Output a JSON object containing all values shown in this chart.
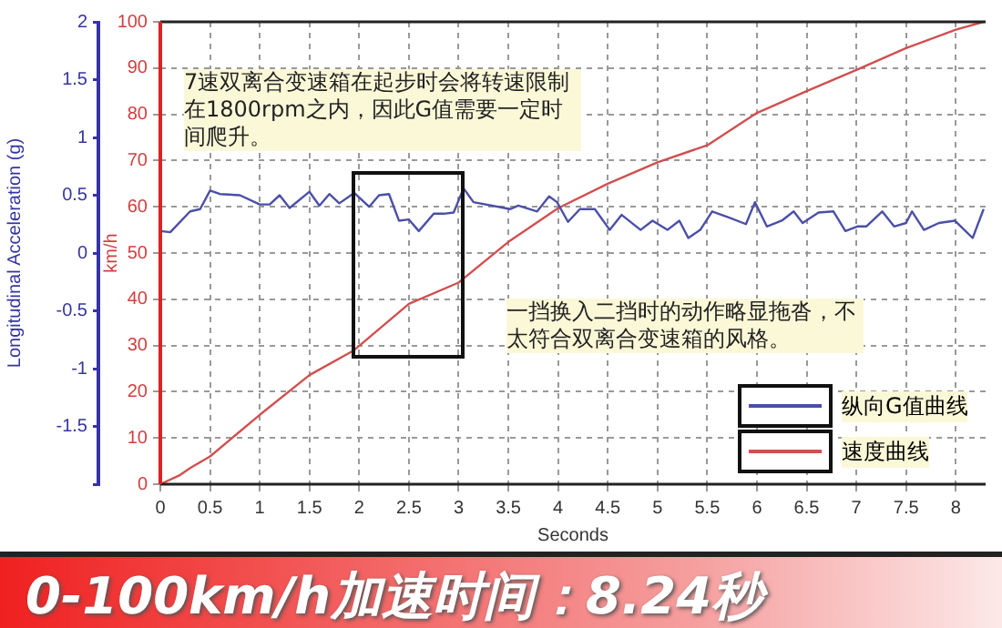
{
  "chart_data": {
    "type": "line",
    "title": "0-100km/h加速时间：8.24秒",
    "xlabel": "Seconds",
    "ylabel": "Longitudinal Acceleration (g)",
    "y2label": "km/h",
    "xlim": [
      0,
      8.3
    ],
    "xticks": [
      0,
      0.5,
      1,
      1.5,
      2,
      2.5,
      3,
      3.5,
      4,
      4.5,
      5,
      5.5,
      6,
      6.5,
      7,
      7.5,
      8
    ],
    "ylim": [
      -2,
      2
    ],
    "yticks": [
      {
        "value": -2,
        "label": null
      },
      -1.5,
      -1,
      -0.5,
      0,
      0.5,
      1,
      1.5,
      2
    ],
    "y2lim": [
      0,
      100
    ],
    "y2ticks": [
      0,
      10,
      20,
      30,
      40,
      50,
      60,
      70,
      80,
      90,
      100
    ],
    "grid": true,
    "legend": "bottom right",
    "marker": "none",
    "line_style": "solid",
    "annotations": [
      "7速双离合变速箱在起步时会将转速限制在1800rpm之内，因此G值需要一定时间爬升。",
      "一挡换入二挡时的动作略显拖沓，不太符合双离合变速箱的风格。"
    ],
    "series": [
      {
        "name": "纵向G值曲线",
        "color": "#4b4fa8",
        "axis": "y",
        "x": [
          0,
          0.1,
          0.3,
          0.4,
          0.5,
          0.6,
          0.8,
          1,
          1.1,
          1.2,
          1.3,
          1.5,
          1.6,
          1.7,
          1.8,
          1.95,
          2.1,
          2.2,
          2.3,
          2.4,
          2.5,
          2.6,
          2.75,
          2.85,
          2.95,
          3.05,
          3.15,
          3.52,
          3.6,
          3.79,
          3.91,
          3.99,
          4.1,
          4.22,
          4.37,
          4.52,
          4.64,
          4.83,
          4.95,
          5.1,
          5.22,
          5.31,
          5.43,
          5.55,
          5.71,
          5.89,
          5.98,
          6.1,
          6.25,
          6.37,
          6.46,
          6.62,
          6.77,
          6.89,
          7.01,
          7.1,
          7.26,
          7.38,
          7.5,
          7.56,
          7.68,
          7.83,
          7.99,
          8.17,
          8.28
        ],
        "values": [
          0.19,
          0.18,
          0.36,
          0.38,
          0.54,
          0.51,
          0.5,
          0.42,
          0.42,
          0.5,
          0.39,
          0.53,
          0.41,
          0.51,
          0.43,
          0.52,
          0.4,
          0.5,
          0.51,
          0.28,
          0.29,
          0.19,
          0.34,
          0.34,
          0.35,
          0.56,
          0.44,
          0.38,
          0.41,
          0.36,
          0.49,
          0.44,
          0.27,
          0.38,
          0.38,
          0.2,
          0.33,
          0.2,
          0.28,
          0.2,
          0.28,
          0.13,
          0.2,
          0.36,
          0.31,
          0.25,
          0.44,
          0.23,
          0.28,
          0.36,
          0.26,
          0.35,
          0.36,
          0.19,
          0.23,
          0.23,
          0.36,
          0.23,
          0.26,
          0.36,
          0.2,
          0.26,
          0.28,
          0.13,
          0.38
        ]
      },
      {
        "name": "速度曲线",
        "color": "#d0504f",
        "axis": "y2",
        "x": [
          0,
          0.2,
          0.3,
          0.5,
          1,
          1.5,
          1.95,
          2.5,
          3,
          3.5,
          4,
          4.5,
          5,
          5.5,
          6,
          6.5,
          7,
          7.5,
          8,
          8.28
        ],
        "values": [
          0,
          2,
          3.5,
          6,
          15,
          23.6,
          29,
          39,
          43.6,
          52.4,
          59.7,
          65,
          69.6,
          73.3,
          80.3,
          85,
          89.6,
          94.3,
          98.3,
          100
        ]
      }
    ]
  }
}
